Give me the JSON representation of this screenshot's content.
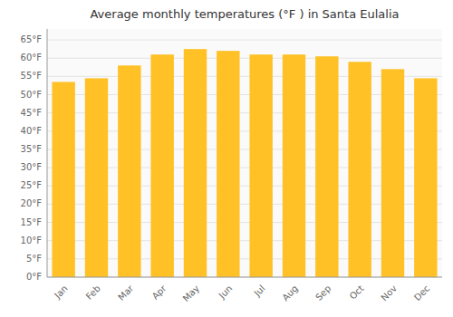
{
  "chart_data": {
    "type": "bar",
    "title": "Average monthly temperatures (°F ) in Santa Eulalia",
    "categories": [
      "Jan",
      "Feb",
      "Mar",
      "Apr",
      "May",
      "Jun",
      "Jul",
      "Aug",
      "Sep",
      "Oct",
      "Nov",
      "Dec"
    ],
    "values": [
      53.5,
      54.5,
      58.0,
      61.0,
      62.5,
      62.0,
      61.0,
      61.0,
      60.5,
      59.0,
      57.0,
      54.5
    ],
    "color": "#FFC125",
    "ylim": [
      0,
      68
    ],
    "yticks": [
      {
        "value": 0,
        "label": "0°F"
      },
      {
        "value": 5,
        "label": "5°F"
      },
      {
        "value": 10,
        "label": "10°F"
      },
      {
        "value": 15,
        "label": "15°F"
      },
      {
        "value": 20,
        "label": "20°F"
      },
      {
        "value": 25,
        "label": "25°F"
      },
      {
        "value": 30,
        "label": "30°F"
      },
      {
        "value": 35,
        "label": "35°F"
      },
      {
        "value": 40,
        "label": "40°F"
      },
      {
        "value": 45,
        "label": "45°F"
      },
      {
        "value": 50,
        "label": "50°F"
      },
      {
        "value": 55,
        "label": "55°F"
      },
      {
        "value": 60,
        "label": "60°F"
      },
      {
        "value": 65,
        "label": "65°F"
      }
    ],
    "grid": true
  }
}
